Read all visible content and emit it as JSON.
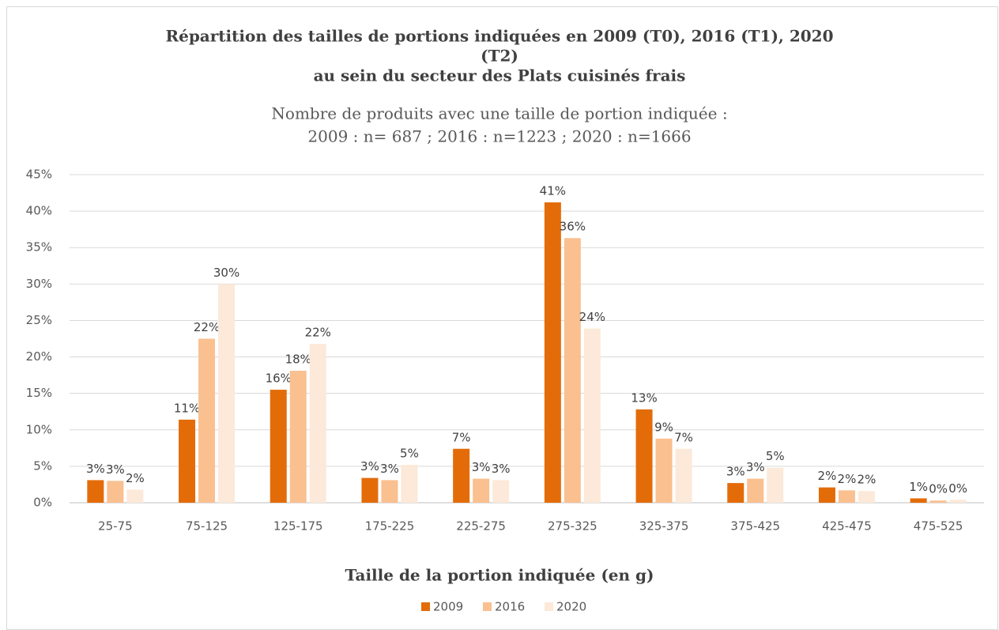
{
  "chart_data": {
    "type": "bar",
    "title": [
      "Répartition des tailles de portions indiquées en 2009 (T0), 2016 (T1), 2020",
      "(T2)",
      "au sein du secteur des Plats cuisinés frais"
    ],
    "subtitle": [
      "Nombre de produits avec une taille de portion indiquée :",
      "2009 : n= 687 ; 2016 : n=1223 ; 2020 : n=1666"
    ],
    "x_label": "Taille de la portion indiquée (en g)",
    "categories": [
      "25-75",
      "75-125",
      "125-175",
      "175-225",
      "225-275",
      "275-325",
      "325-375",
      "375-425",
      "425-475",
      "475-525"
    ],
    "series": [
      {
        "name": "2009",
        "color": "#E36C09",
        "values": [
          3.1,
          11.4,
          15.5,
          3.4,
          7.4,
          41.2,
          12.8,
          2.7,
          2.1,
          0.6
        ],
        "value_labels": [
          "3%",
          "11%",
          "16%",
          "3%",
          "7%",
          "41%",
          "13%",
          "3%",
          "2%",
          "1%"
        ]
      },
      {
        "name": "2016",
        "color": "#FAC090",
        "values": [
          3.0,
          22.5,
          18.1,
          3.1,
          3.3,
          36.3,
          8.8,
          3.3,
          1.7,
          0.3
        ],
        "value_labels": [
          "3%",
          "22%",
          "18%",
          "3%",
          "3%",
          "36%",
          "9%",
          "3%",
          "2%",
          "0%"
        ]
      },
      {
        "name": "2020",
        "color": "#FDE9D9",
        "values": [
          1.8,
          30.0,
          21.8,
          5.2,
          3.1,
          23.9,
          7.4,
          4.8,
          1.6,
          0.4
        ],
        "value_labels": [
          "2%",
          "30%",
          "22%",
          "5%",
          "3%",
          "24%",
          "7%",
          "5%",
          "2%",
          "0%"
        ]
      }
    ],
    "ylim": [
      0,
      45
    ],
    "yticks": [
      {
        "value": 0,
        "label": "0%"
      },
      {
        "value": 5,
        "label": "5%"
      },
      {
        "value": 10,
        "label": "10%"
      },
      {
        "value": 15,
        "label": "15%"
      },
      {
        "value": 20,
        "label": "20%"
      },
      {
        "value": 25,
        "label": "25%"
      },
      {
        "value": 30,
        "label": "30%"
      },
      {
        "value": 35,
        "label": "35%"
      },
      {
        "value": 40,
        "label": "40%"
      },
      {
        "value": 45,
        "label": "45%"
      }
    ],
    "grid": true,
    "legend": "bottom"
  }
}
